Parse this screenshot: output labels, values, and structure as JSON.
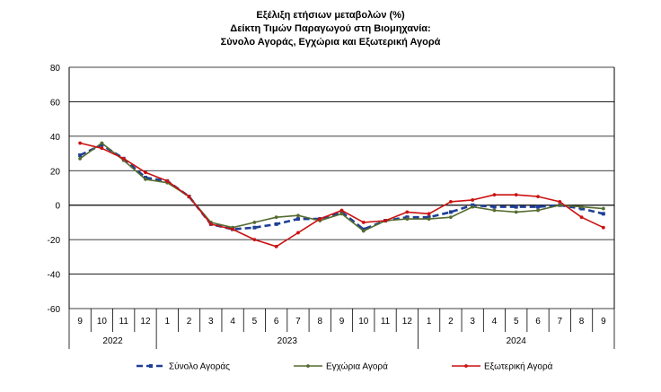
{
  "chart_data": {
    "type": "line",
    "title": [
      "Εξέλιξη ετήσιων μεταβολών (%)",
      "Δείκτη Τιμών Παραγωγού στη Βιομηχανία:",
      "Σύνολο Αγοράς, Εγχώρια και Εξωτερική Αγορά"
    ],
    "months": [
      "9",
      "10",
      "11",
      "12",
      "1",
      "2",
      "3",
      "4",
      "5",
      "6",
      "7",
      "8",
      "9",
      "10",
      "11",
      "12",
      "1",
      "2",
      "3",
      "4",
      "5",
      "6",
      "7",
      "8",
      "9"
    ],
    "years": [
      {
        "label": "2022",
        "start": 0,
        "end": 3
      },
      {
        "label": "2023",
        "start": 4,
        "end": 15
      },
      {
        "label": "2024",
        "start": 16,
        "end": 24
      }
    ],
    "ylim": [
      -60,
      80
    ],
    "yticks": [
      -60,
      -40,
      -20,
      0,
      20,
      40,
      60,
      80
    ],
    "grid": true,
    "legend_position": "bottom",
    "series": [
      {
        "name": "Σύνολο Αγοράς",
        "color": "#1f3f96",
        "style": "dashed-square",
        "values": [
          29,
          35,
          27,
          16,
          14,
          5,
          -11,
          -14,
          -13,
          -11,
          -8,
          -8,
          -4,
          -14,
          -9,
          -7,
          -7,
          -4,
          0,
          -1,
          -1,
          -1,
          0,
          -2,
          -5
        ]
      },
      {
        "name": "Εγχώρια Αγορά",
        "color": "#556b2f",
        "style": "solid-dot",
        "values": [
          27,
          36,
          26,
          15,
          13,
          5,
          -10,
          -13,
          -10,
          -7,
          -6,
          -9,
          -5,
          -15,
          -9,
          -8,
          -8,
          -7,
          -1,
          -3,
          -4,
          -3,
          0,
          -1,
          -2
        ]
      },
      {
        "name": "Εξωτερική Αγορά",
        "color": "#cc1111",
        "style": "solid-dot",
        "values": [
          36,
          33,
          27,
          19,
          14,
          5,
          -11,
          -14,
          -20,
          -24,
          -16,
          -8,
          -3,
          -10,
          -9,
          -4,
          -5,
          2,
          3,
          6,
          6,
          5,
          2,
          -7,
          -13
        ]
      }
    ]
  }
}
